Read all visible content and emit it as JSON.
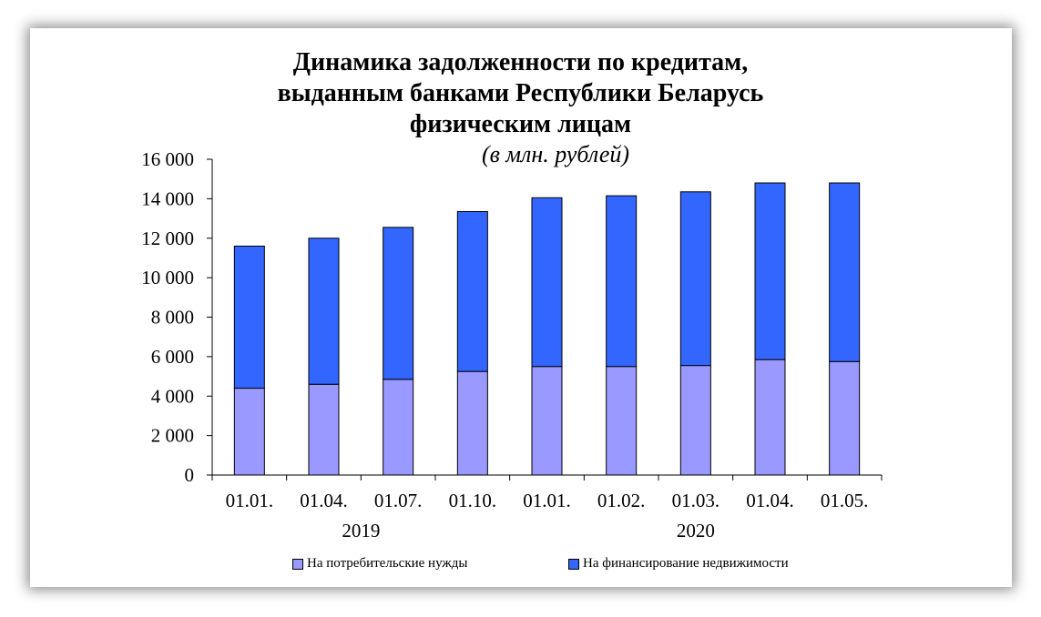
{
  "chart_data": {
    "type": "bar",
    "stacked": true,
    "title_lines": [
      "Динамика задолженности по кредитам,",
      "выданным банками Республики Беларусь",
      "физическим лицам"
    ],
    "subtitle": "(в млн. рублей)",
    "categories": [
      "01.01.",
      "01.04.",
      "01.07.",
      "01.10.",
      "01.01.",
      "01.02.",
      "01.03.",
      "01.04.",
      "01.05."
    ],
    "year_groups": [
      {
        "label": "2019",
        "from": 0,
        "to": 3
      },
      {
        "label": "2020",
        "from": 4,
        "to": 8
      }
    ],
    "series": [
      {
        "name": "На потребительские нужды",
        "color": "#9999ff",
        "values": [
          4400,
          4600,
          4850,
          5250,
          5500,
          5500,
          5550,
          5850,
          5750
        ]
      },
      {
        "name": "На финансирование недвижимости",
        "color": "#3366ff",
        "values": [
          7200,
          7400,
          7700,
          8100,
          8550,
          8650,
          8800,
          8950,
          9050
        ]
      }
    ],
    "ylim": [
      0,
      16000
    ],
    "yticks": [
      0,
      2000,
      4000,
      6000,
      8000,
      10000,
      12000,
      14000,
      16000
    ],
    "ytick_labels": [
      "0",
      "2 000",
      "4 000",
      "6 000",
      "8 000",
      "10 000",
      "12 000",
      "14 000",
      "16 000"
    ],
    "grid": false,
    "legend_position": "bottom"
  }
}
